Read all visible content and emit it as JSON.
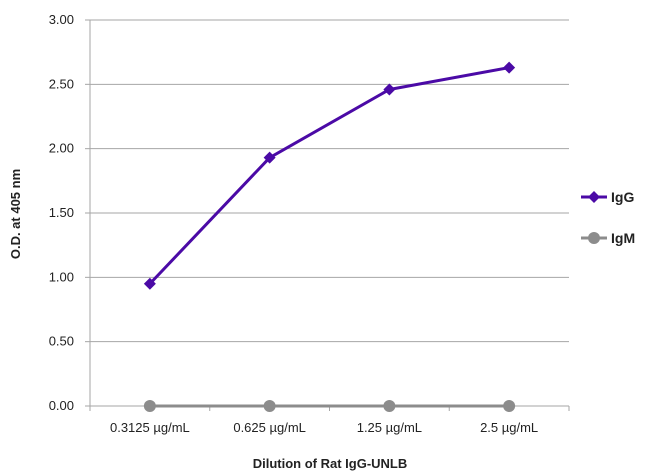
{
  "chart_data": {
    "type": "line",
    "title": "",
    "xlabel": "Dilution of Rat IgG-UNLB",
    "ylabel": "O.D. at 405 nm",
    "categories": [
      "0.3125 µg/mL",
      "0.625 µg/mL",
      "1.25 µg/mL",
      "2.5 µg/mL"
    ],
    "ylim": [
      0,
      3
    ],
    "yticks": [
      "0.00",
      "0.50",
      "1.00",
      "1.50",
      "2.00",
      "2.50",
      "3.00"
    ],
    "grid": true,
    "legend_position": "right",
    "series": [
      {
        "name": "IgG",
        "values": [
          0.95,
          1.93,
          2.46,
          2.63
        ],
        "color": "#4b0aa6",
        "marker": "diamond"
      },
      {
        "name": "IgM",
        "values": [
          0.0,
          0.0,
          0.0,
          0.0
        ],
        "color": "#8c8c8c",
        "marker": "circle"
      }
    ]
  }
}
